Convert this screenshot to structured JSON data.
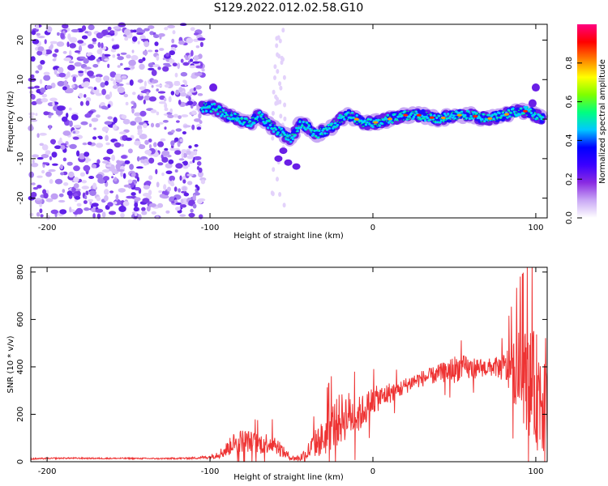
{
  "figure": {
    "title": "S129.2022.012.02.58.G10"
  },
  "chart_data": [
    {
      "type": "heatmap",
      "xlabel": "Height of straight line (km)",
      "ylabel": "Frequency (Hz)",
      "xlim": [
        -210,
        107
      ],
      "ylim": [
        -25,
        24
      ],
      "xticks": [
        -200,
        -100,
        0,
        100
      ],
      "yticks": [
        -20,
        -10,
        0,
        10,
        20
      ],
      "grid": false,
      "colorbar": {
        "label": "Normalized spectral amplitude",
        "range": [
          0,
          1
        ],
        "ticks": [
          "0.0",
          "0.2",
          "0.4",
          "0.6",
          "0.8"
        ],
        "colormap": [
          "#ffffff",
          "#c9a8f5",
          "#8a2be2",
          "#3b00ff",
          "#0000ff",
          "#00c8ff",
          "#00ff80",
          "#7fff00",
          "#ffff00",
          "#ff8000",
          "#ff0000",
          "#ff0080"
        ]
      },
      "ridge": {
        "x": [
          -105,
          -98,
          -90,
          -82,
          -75,
          -70,
          -65,
          -58,
          -50,
          -45,
          -40,
          -35,
          -30,
          -25,
          -20,
          -15,
          -10,
          -5,
          0,
          10,
          20,
          30,
          40,
          50,
          60,
          70,
          80,
          90,
          95,
          100,
          105
        ],
        "y": [
          3,
          3,
          1,
          0,
          -1,
          1,
          -1,
          -3,
          -5,
          -1,
          -2,
          -4,
          -3,
          -2,
          0,
          1,
          0,
          -1,
          -1,
          0,
          1,
          1,
          0,
          1,
          1,
          0,
          1,
          2,
          2,
          1,
          0
        ]
      }
    },
    {
      "type": "line",
      "xlabel": "Height of straight line (km)",
      "ylabel": "SNR (10 * v/v)",
      "xlim": [
        -210,
        107
      ],
      "ylim": [
        0,
        820
      ],
      "xticks": [
        -200,
        -100,
        0,
        100
      ],
      "yticks": [
        0,
        200,
        400,
        600,
        800
      ],
      "grid": false,
      "series": [
        {
          "color": "#ee3333",
          "x": [
            -210,
            -190,
            -170,
            -150,
            -130,
            -110,
            -100,
            -92,
            -85,
            -80,
            -75,
            -70,
            -65,
            -60,
            -55,
            -50,
            -45,
            -40,
            -35,
            -30,
            -25,
            -20,
            -15,
            -10,
            -5,
            0,
            5,
            10,
            15,
            20,
            25,
            30,
            35,
            40,
            45,
            50,
            55,
            60,
            65,
            70,
            75,
            80,
            85,
            90,
            95,
            100,
            105
          ],
          "y": [
            12,
            15,
            14,
            14,
            13,
            15,
            20,
            40,
            80,
            90,
            85,
            75,
            80,
            80,
            40,
            15,
            15,
            40,
            80,
            100,
            150,
            180,
            200,
            190,
            220,
            260,
            270,
            290,
            300,
            320,
            340,
            350,
            360,
            370,
            380,
            390,
            400,
            390,
            400,
            395,
            400,
            395,
            390,
            380,
            340,
            300,
            280
          ],
          "noise": [
            3,
            3,
            3,
            3,
            3,
            4,
            8,
            25,
            45,
            50,
            45,
            45,
            45,
            45,
            25,
            10,
            15,
            40,
            60,
            80,
            100,
            110,
            100,
            80,
            70,
            60,
            50,
            45,
            40,
            35,
            35,
            35,
            35,
            40,
            45,
            60,
            50,
            50,
            40,
            40,
            40,
            60,
            120,
            180,
            220,
            250,
            250
          ]
        }
      ]
    }
  ]
}
